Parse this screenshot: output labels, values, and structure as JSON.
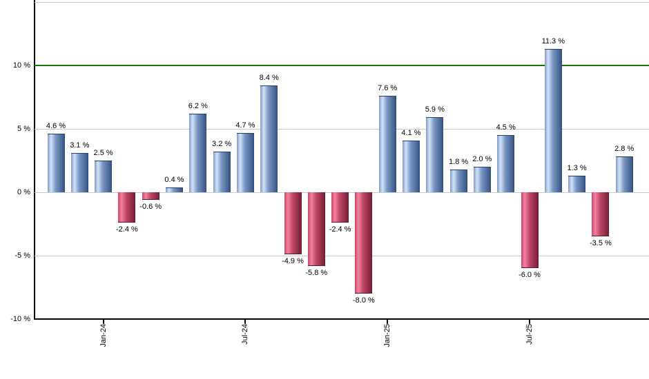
{
  "chart_data": {
    "type": "bar",
    "title": "",
    "xlabel": "",
    "ylabel": "",
    "values": [
      4.6,
      3.1,
      2.5,
      -2.4,
      -0.6,
      0.4,
      6.2,
      3.2,
      4.7,
      8.4,
      -4.9,
      -5.8,
      -2.4,
      -8.0,
      7.6,
      4.1,
      5.9,
      1.8,
      2.0,
      4.5,
      -6.0,
      11.3,
      1.3,
      -3.5,
      2.8
    ],
    "value_label_suffix": " %",
    "x_ticks": [
      {
        "label": "Jan-24",
        "bar_index": 2
      },
      {
        "label": "Jul-24",
        "bar_index": 8
      },
      {
        "label": "Jan-25",
        "bar_index": 14
      },
      {
        "label": "Jul-25",
        "bar_index": 20
      }
    ],
    "y_ticks": [
      {
        "label": "10 %",
        "value": 10
      },
      {
        "label": "5 %",
        "value": 5
      },
      {
        "label": "0 %",
        "value": 0
      },
      {
        "label": "-5 %",
        "value": -5
      },
      {
        "label": "-10 %",
        "value": -10
      }
    ],
    "ylim": [
      -10,
      15
    ],
    "gridline_values": [
      15,
      5,
      0,
      -5
    ],
    "reference_line": {
      "value": 10,
      "color": "#0a7a0a"
    },
    "grid": true,
    "legend": "none",
    "colors": {
      "positive_gradient": [
        "#7E9BC8",
        "#D5E2F8",
        "#7693C2",
        "#3A5885",
        "#27426F"
      ],
      "negative_gradient": [
        "#CE4168",
        "#F2839F",
        "#C04668",
        "#7A2038",
        "#5E1628"
      ],
      "positive_border": "#24426F",
      "negative_border": "#5E1628",
      "gridline": "#c9c9c9",
      "axis": "#000000",
      "label_text": "#000000"
    }
  }
}
